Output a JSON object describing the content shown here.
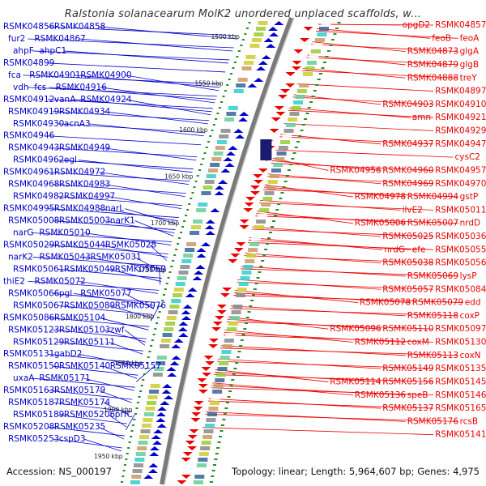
{
  "title": "Ralstonia solanacearum MolK2 unordered unplaced scaffolds, w...",
  "accession": "Accession: NS_000197",
  "summary": "Topology: linear; Length: 5,964,607 bp; Genes: 4,975",
  "colors": {
    "minus_strand": "#0000cc",
    "plus_strand": "#ee0000",
    "backbone": "#888888",
    "scale": "#2a8a2a"
  },
  "scale_marks": [
    "1500 kbp",
    "1550 kbp",
    "1600 kbp",
    "1650 kbp",
    "1700 kbp",
    "1750 kbp",
    "1800 kbp",
    "1850 kbp",
    "1900 kbp",
    "1950 kbp"
  ],
  "left_labels": [
    "RSMK04856",
    "RSMK04858",
    "fur2",
    "RSMK04867",
    "ahpF",
    "ahpC1",
    "RSMK04899",
    "fca",
    "RSMK04901",
    "RSMK04900",
    "vdh",
    "fcs",
    "RSMK04916",
    "RSMK04912",
    "vanA",
    "RSMK04924",
    "RSMK04919",
    "RSMK04934",
    "RSMK04930",
    "acnA3",
    "RSMK04946",
    "RSMK04943",
    "RSMK04949",
    "RSMK04962",
    "egl",
    "RSMK04961",
    "RSMK04972",
    "RSMK04968",
    "RSMK04983",
    "RSMK04982",
    "RSMK04997",
    "RSMK04995",
    "RSMK04988",
    "narL",
    "RSMK05008",
    "RSMK05003",
    "narK1",
    "narG",
    "RSMK05010",
    "RSMK05029",
    "RSMK05044",
    "RSMK05028",
    "narK2",
    "RSMK05043",
    "RSMK05031",
    "RSMK05061",
    "RSMK05049",
    "RSMK05059",
    "thiE2",
    "RSMK05072",
    "RSMK05066",
    "pgl",
    "RSMK05077",
    "RSMK05067",
    "RSMK05089",
    "RSMK05076",
    "RSMK05086",
    "RSMK05104",
    "RSMK05123",
    "RSMK05103",
    "zwf",
    "RSMK05129",
    "RSMK05111",
    "RSMK05131",
    "gabD2",
    "RSMK05150",
    "RSMK05140",
    "RSMK05157",
    "uxaA",
    "RSMK05171",
    "RSMK05163",
    "RSMK05179",
    "RSMK05187",
    "RSMK05174",
    "RSMK05189",
    "RSMK05206",
    "prfC",
    "RSMK05208",
    "RSMK05235",
    "RSMK05253",
    "cspD3"
  ],
  "right_labels": [
    "opgD2",
    "RSMK04857",
    "feoB",
    "feoA",
    "RSMK04873",
    "glgA",
    "RSMK04879",
    "glgB",
    "RSMK04888",
    "treY",
    "RSMK04897",
    "RSMK04903",
    "RSMK04910",
    "amn",
    "RSMK04921",
    "RSMK04929",
    "RSMK04937",
    "RSMK04947",
    "cysC2",
    "RSMK04956",
    "RSMK04960",
    "RSMK04957",
    "RSMK04969",
    "RSMK04970",
    "RSMK04978",
    "RSMK04994",
    "gstP",
    "ilvE2",
    "RSMK05011",
    "RSMK05006",
    "RSMK05007",
    "nrdD",
    "RSMK05025",
    "RSMK05036",
    "nrdG",
    "efe",
    "RSMK05055",
    "RSMK05038",
    "RSMK05056",
    "RSMK05069",
    "lysP",
    "RSMK05057",
    "RSMK05084",
    "RSMK05078",
    "RSMK05079",
    "edd",
    "RSMK05118",
    "coxP",
    "RSMK05096",
    "RSMK05110",
    "RSMK05097",
    "RSMK05112",
    "coxM",
    "RSMK05130",
    "RSMK05113",
    "coxN",
    "RSMK05149",
    "RSMK05135",
    "RSMK05114",
    "RSMK05156",
    "RSMK05145",
    "RSMK05136",
    "speB",
    "RSMK05146",
    "RSMK05137",
    "RSMK05165",
    "RSMK05176",
    "rcsB",
    "RSMK05141"
  ]
}
